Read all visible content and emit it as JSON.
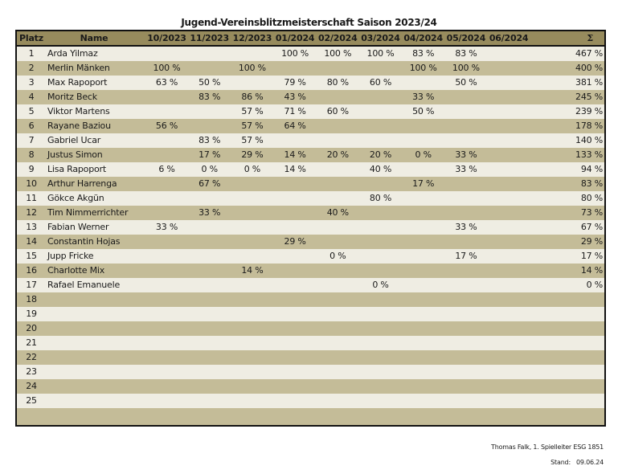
{
  "title": "Jugend-Vereinsblitzmeisterschaft Saison 2023/24",
  "columns": {
    "platz": "Platz",
    "name": "Name",
    "months": [
      "10/2023",
      "11/2023",
      "12/2023",
      "01/2024",
      "02/2024",
      "03/2024",
      "04/2024",
      "05/2024",
      "06/2024"
    ],
    "sum": "Σ"
  },
  "rows": [
    {
      "platz": "1",
      "name": "Arda Yilmaz",
      "vals": [
        "",
        "",
        "",
        "100 %",
        "100 %",
        "100 %",
        "83 %",
        "83 %",
        ""
      ],
      "sum": "467 %"
    },
    {
      "platz": "2",
      "name": "Merlin Mänken",
      "vals": [
        "100 %",
        "",
        "100 %",
        "",
        "",
        "",
        "100 %",
        "100 %",
        ""
      ],
      "sum": "400 %"
    },
    {
      "platz": "3",
      "name": "Max Rapoport",
      "vals": [
        "63 %",
        "50 %",
        "",
        "79 %",
        "80 %",
        "60 %",
        "",
        "50 %",
        ""
      ],
      "sum": "381 %"
    },
    {
      "platz": "4",
      "name": "Moritz Beck",
      "vals": [
        "",
        "83 %",
        "86 %",
        "43 %",
        "",
        "",
        "33 %",
        "",
        ""
      ],
      "sum": "245 %"
    },
    {
      "platz": "5",
      "name": "Viktor Martens",
      "vals": [
        "",
        "",
        "57 %",
        "71 %",
        "60 %",
        "",
        "50 %",
        "",
        ""
      ],
      "sum": "239 %"
    },
    {
      "platz": "6",
      "name": "Rayane Baziou",
      "vals": [
        "56 %",
        "",
        "57 %",
        "64 %",
        "",
        "",
        "",
        "",
        ""
      ],
      "sum": "178 %"
    },
    {
      "platz": "7",
      "name": "Gabriel Ucar",
      "vals": [
        "",
        "83 %",
        "57 %",
        "",
        "",
        "",
        "",
        "",
        ""
      ],
      "sum": "140 %"
    },
    {
      "platz": "8",
      "name": "Justus Simon",
      "vals": [
        "",
        "17 %",
        "29 %",
        "14 %",
        "20 %",
        "20 %",
        "0 %",
        "33 %",
        ""
      ],
      "sum": "133 %"
    },
    {
      "platz": "9",
      "name": "Lisa Rapoport",
      "vals": [
        "6 %",
        "0 %",
        "0 %",
        "14 %",
        "",
        "40 %",
        "",
        "33 %",
        ""
      ],
      "sum": "94 %"
    },
    {
      "platz": "10",
      "name": "Arthur Harrenga",
      "vals": [
        "",
        "67 %",
        "",
        "",
        "",
        "",
        "17 %",
        "",
        ""
      ],
      "sum": "83 %"
    },
    {
      "platz": "11",
      "name": "Gökce Akgün",
      "vals": [
        "",
        "",
        "",
        "",
        "",
        "80 %",
        "",
        "",
        ""
      ],
      "sum": "80 %"
    },
    {
      "platz": "12",
      "name": "Tim Nimmerrichter",
      "vals": [
        "",
        "33 %",
        "",
        "",
        "40 %",
        "",
        "",
        "",
        ""
      ],
      "sum": "73 %"
    },
    {
      "platz": "13",
      "name": "Fabian Werner",
      "vals": [
        "33 %",
        "",
        "",
        "",
        "",
        "",
        "",
        "33 %",
        ""
      ],
      "sum": "67 %"
    },
    {
      "platz": "14",
      "name": "Constantin Hojas",
      "vals": [
        "",
        "",
        "",
        "29 %",
        "",
        "",
        "",
        "",
        ""
      ],
      "sum": "29 %"
    },
    {
      "platz": "15",
      "name": "Jupp Fricke",
      "vals": [
        "",
        "",
        "",
        "",
        "0 %",
        "",
        "",
        "17 %",
        ""
      ],
      "sum": "17 %"
    },
    {
      "platz": "16",
      "name": "Charlotte Mix",
      "vals": [
        "",
        "",
        "14 %",
        "",
        "",
        "",
        "",
        "",
        ""
      ],
      "sum": "14 %"
    },
    {
      "platz": "17",
      "name": "Rafael Emanuele",
      "vals": [
        "",
        "",
        "",
        "",
        "",
        "0 %",
        "",
        "",
        ""
      ],
      "sum": "0 %"
    },
    {
      "platz": "18",
      "name": "",
      "vals": [
        "",
        "",
        "",
        "",
        "",
        "",
        "",
        "",
        ""
      ],
      "sum": ""
    },
    {
      "platz": "19",
      "name": "",
      "vals": [
        "",
        "",
        "",
        "",
        "",
        "",
        "",
        "",
        ""
      ],
      "sum": ""
    },
    {
      "platz": "20",
      "name": "",
      "vals": [
        "",
        "",
        "",
        "",
        "",
        "",
        "",
        "",
        ""
      ],
      "sum": ""
    },
    {
      "platz": "21",
      "name": "",
      "vals": [
        "",
        "",
        "",
        "",
        "",
        "",
        "",
        "",
        ""
      ],
      "sum": ""
    },
    {
      "platz": "22",
      "name": "",
      "vals": [
        "",
        "",
        "",
        "",
        "",
        "",
        "",
        "",
        ""
      ],
      "sum": ""
    },
    {
      "platz": "23",
      "name": "",
      "vals": [
        "",
        "",
        "",
        "",
        "",
        "",
        "",
        "",
        ""
      ],
      "sum": ""
    },
    {
      "platz": "24",
      "name": "",
      "vals": [
        "",
        "",
        "",
        "",
        "",
        "",
        "",
        "",
        ""
      ],
      "sum": ""
    },
    {
      "platz": "25",
      "name": "",
      "vals": [
        "",
        "",
        "",
        "",
        "",
        "",
        "",
        "",
        ""
      ],
      "sum": ""
    }
  ],
  "footer": {
    "author": "Thomas Falk, 1. Spielleiter ESG 1851",
    "stand_label": "Stand:",
    "stand_date": "09.06.24"
  }
}
